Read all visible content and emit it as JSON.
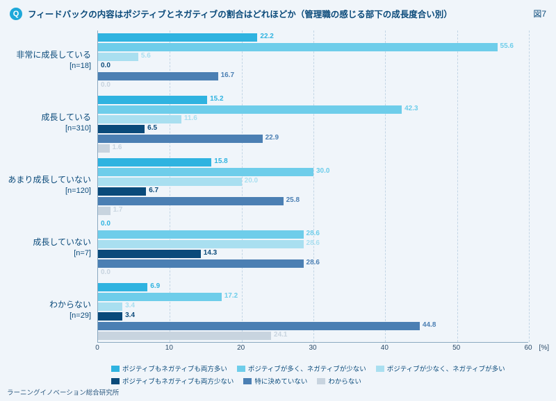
{
  "header": {
    "q": "Q",
    "title": "フィードバックの内容はポジティブとネガティブの割合はどれほどか（管理職の感じる部下の成長度合い別）",
    "fig_no": "図7"
  },
  "chart": {
    "type": "grouped-horizontal-bar",
    "x_max": 60,
    "x_tick_step": 10,
    "x_unit": "[%]",
    "series": [
      {
        "label": "ポジティブもネガティブも両方多い",
        "color": "#2fb3e0"
      },
      {
        "label": "ポジティブが多く、ネガティブが少ない",
        "color": "#6ecdea"
      },
      {
        "label": "ポジティブが少なく、ネガティブが多い",
        "color": "#a9dff0"
      },
      {
        "label": "ポジティブもネガティブも両方少ない",
        "color": "#0a4a7a"
      },
      {
        "label": "特に決めていない",
        "color": "#4b7fb3"
      },
      {
        "label": "わからない",
        "color": "#c8d4df"
      }
    ],
    "categories": [
      {
        "label": "非常に成長している",
        "n": "[n=18]",
        "values": [
          22.2,
          55.6,
          5.6,
          0.0,
          16.7,
          0.0
        ]
      },
      {
        "label": "成長している",
        "n": "[n=310]",
        "values": [
          15.2,
          42.3,
          11.6,
          6.5,
          22.9,
          1.6
        ]
      },
      {
        "label": "あまり成長していない",
        "n": "[n=120]",
        "values": [
          15.8,
          30.0,
          20.0,
          6.7,
          25.8,
          1.7
        ]
      },
      {
        "label": "成長していない",
        "n": "[n=7]",
        "values": [
          0.0,
          28.6,
          28.6,
          14.3,
          28.6,
          0.0
        ]
      },
      {
        "label": "わからない",
        "n": "[n=29]",
        "values": [
          6.9,
          17.2,
          3.4,
          3.4,
          44.8,
          24.1
        ]
      }
    ]
  },
  "footer": "ラーニングイノベーション総合研究所"
}
